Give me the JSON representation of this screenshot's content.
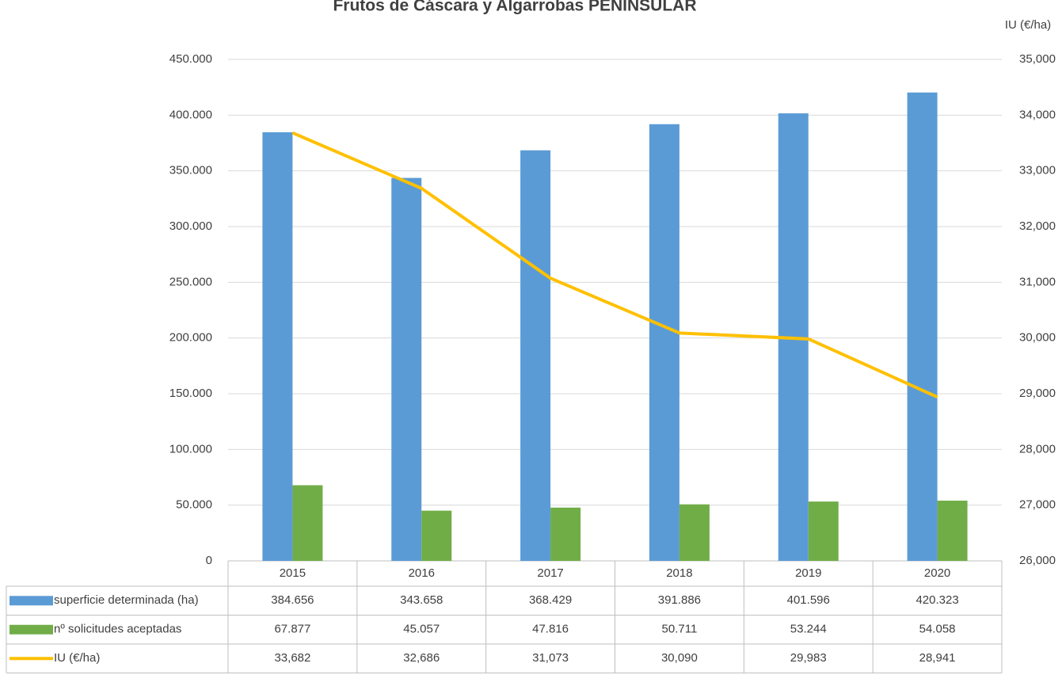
{
  "chart_data": {
    "type": "bar",
    "title": "Frutos de Cáscara y Algarrobas PENINSULAR",
    "y2label": "IU (€/ha)",
    "categories": [
      "2015",
      "2016",
      "2017",
      "2018",
      "2019",
      "2020"
    ],
    "series": [
      {
        "name": "superficie determinada (ha)",
        "type": "bar",
        "color": "#5b9bd5",
        "values": [
          384656,
          343658,
          368429,
          391886,
          401596,
          420323
        ],
        "value_labels": [
          "384.656",
          "343.658",
          "368.429",
          "391.886",
          "401.596",
          "420.323"
        ]
      },
      {
        "name": "nº solicitudes aceptadas",
        "type": "bar",
        "color": "#70ad47",
        "values": [
          67877,
          45057,
          47816,
          50711,
          53244,
          54058
        ],
        "value_labels": [
          "67.877",
          "45.057",
          "47.816",
          "50.711",
          "53.244",
          "54.058"
        ]
      },
      {
        "name": "IU (€/ha)",
        "type": "line",
        "axis": "y2",
        "color": "#ffc000",
        "values": [
          33682,
          32686,
          31073,
          30090,
          29983,
          28941
        ],
        "value_labels": [
          "33,682",
          "32,686",
          "31,073",
          "30,090",
          "29,983",
          "28,941"
        ]
      }
    ],
    "ylim": [
      0,
      450000
    ],
    "yticks": [
      0,
      {
        "value": 50000,
        "label": "50.000"
      },
      {
        "value": 100000,
        "label": "100.000"
      },
      {
        "value": 150000,
        "label": "150.000"
      },
      {
        "value": 200000,
        "label": "200.000"
      },
      {
        "value": 250000,
        "label": "250.000"
      },
      {
        "value": 300000,
        "label": "300.000"
      },
      {
        "value": 350000,
        "label": "350.000"
      },
      {
        "value": 400000,
        "label": "400.000"
      },
      {
        "value": 450000,
        "label": "450.000"
      }
    ],
    "y2lim": [
      26000,
      35000
    ],
    "y2ticks": [
      {
        "value": 26000,
        "label": "26,000"
      },
      {
        "value": 27000,
        "label": "27,000"
      },
      {
        "value": 28000,
        "label": "28,000"
      },
      {
        "value": 29000,
        "label": "29,000"
      },
      {
        "value": 30000,
        "label": "30,000"
      },
      {
        "value": 31000,
        "label": "31,000"
      },
      {
        "value": 32000,
        "label": "32,000"
      },
      {
        "value": 33000,
        "label": "33,000"
      },
      {
        "value": 34000,
        "label": "34,000"
      },
      {
        "value": 35000,
        "label": "35,000"
      }
    ],
    "grid": true
  }
}
